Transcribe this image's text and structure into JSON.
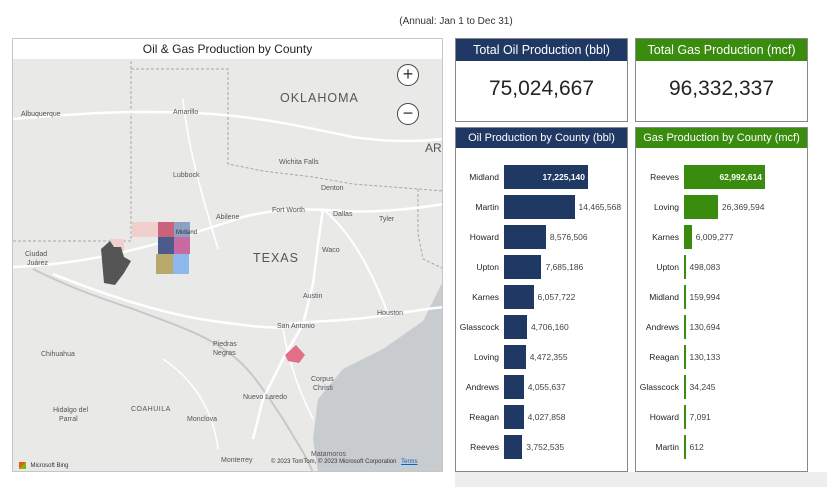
{
  "subtitle": "(Annual: Jan 1 to Dec 31)",
  "map": {
    "title": "Oil & Gas Production by County",
    "zoom_in": "+",
    "zoom_out": "−",
    "labels": {
      "oklahoma": "OKLAHOMA",
      "texas": "TEXAS",
      "ar": "AR",
      "albuquerque": "Albuquerque",
      "amarillo": "Amarillo",
      "lubbock": "Lubbock",
      "wichita_falls": "Wichita Falls",
      "denton": "Denton",
      "fort_worth": "Fort Worth",
      "dallas": "Dallas",
      "tyler": "Tyler",
      "abilene": "Abilene",
      "midland": "Midland",
      "waco": "Waco",
      "austin": "Austin",
      "houston": "Houston",
      "san_antonio": "San Antonio",
      "ciudad": "Ciudad",
      "juarez": "Juárez",
      "chihuahua": "Chihuahua",
      "piedras": "Piedras",
      "negras": "Negras",
      "nuevo_laredo": "Nuevo Laredo",
      "corpus": "Corpus",
      "christi": "Christi",
      "hidalgo": "Hidalgo del",
      "parral": "Parral",
      "coahuila": "COAHUILA",
      "monclova": "Monclova",
      "monterrey": "Monterrey",
      "matamoros": "Matamoros"
    },
    "bing": "Microsoft Bing",
    "attribution": "© 2023 TomTom, © 2023 Microsoft Corporation",
    "terms": "Terms"
  },
  "kpi_oil": {
    "title": "Total Oil Production (bbl)",
    "value": "75,024,667",
    "color": "#1f3864"
  },
  "kpi_gas": {
    "title": "Total Gas Production (mcf)",
    "value": "96,332,337",
    "color": "#3a8c0f"
  },
  "oil_panel": {
    "title": "Oil Production by County (bbl)",
    "color": "#1f3864"
  },
  "gas_panel": {
    "title": "Gas Production by County (mcf)",
    "color": "#3a8c0f"
  },
  "chart_data": [
    {
      "type": "bar",
      "title": "Oil Production by County (bbl)",
      "categories": [
        "Midland",
        "Martin",
        "Howard",
        "Upton",
        "Karnes",
        "Glasscock",
        "Loving",
        "Andrews",
        "Reagan",
        "Reeves"
      ],
      "values": [
        17225140,
        14465568,
        8576506,
        7685186,
        6057722,
        4706160,
        4472355,
        4055637,
        4027858,
        3752535
      ],
      "labels": [
        "17,225,140",
        "14,465,568",
        "8,576,506",
        "7,685,186",
        "6,057,722",
        "4,706,160",
        "4,472,355",
        "4,055,637",
        "4,027,858",
        "3,752,535"
      ]
    },
    {
      "type": "bar",
      "title": "Gas Production by County (mcf)",
      "categories": [
        "Reeves",
        "Loving",
        "Karnes",
        "Upton",
        "Midland",
        "Andrews",
        "Reagan",
        "Glasscock",
        "Howard",
        "Martin"
      ],
      "values": [
        62992614,
        26369594,
        6009277,
        498083,
        159994,
        130694,
        130133,
        34245,
        7091,
        612
      ],
      "labels": [
        "62,992,614",
        "26,369,594",
        "6,009,277",
        "498,083",
        "159,994",
        "130,694",
        "130,133",
        "34,245",
        "7,091",
        "612"
      ]
    }
  ]
}
